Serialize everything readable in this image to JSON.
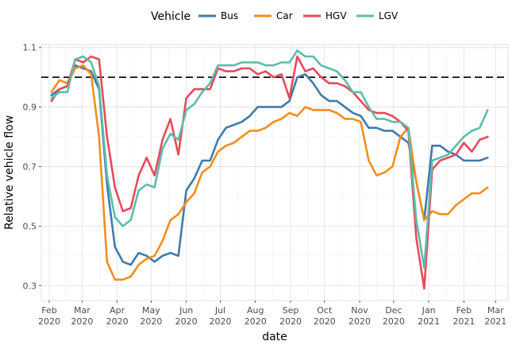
{
  "chart_data": {
    "type": "line",
    "xlabel": "date",
    "ylabel": "Relative vehicle flow",
    "legend": {
      "title": "Vehicle",
      "placement": "top"
    },
    "grid": true,
    "reference_line": {
      "y": 1.0,
      "style": "dashed"
    },
    "ylim": [
      0.25,
      1.11
    ],
    "xlim": [
      "2020-01-25",
      "2021-03-12"
    ],
    "y_ticks": [
      {
        "value": 0.3,
        "label": "0.3"
      },
      {
        "value": 0.5,
        "label": "0.5"
      },
      {
        "value": 0.7,
        "label": "0.7"
      },
      {
        "value": 0.9,
        "label": "0.9"
      },
      {
        "value": 1.1,
        "label": "1.1"
      }
    ],
    "x_ticks": [
      {
        "date": "2020-02-01",
        "month": "Feb",
        "year": "2020"
      },
      {
        "date": "2020-03-01",
        "month": "Mar",
        "year": "2020"
      },
      {
        "date": "2020-04-01",
        "month": "Apr",
        "year": "2020"
      },
      {
        "date": "2020-05-01",
        "month": "May",
        "year": "2020"
      },
      {
        "date": "2020-06-01",
        "month": "Jun",
        "year": "2020"
      },
      {
        "date": "2020-07-01",
        "month": "Jul",
        "year": "2020"
      },
      {
        "date": "2020-08-01",
        "month": "Aug",
        "year": "2020"
      },
      {
        "date": "2020-09-01",
        "month": "Sep",
        "year": "2020"
      },
      {
        "date": "2020-10-01",
        "month": "Oct",
        "year": "2020"
      },
      {
        "date": "2020-11-01",
        "month": "Nov",
        "year": "2020"
      },
      {
        "date": "2020-12-01",
        "month": "Dec",
        "year": "2020"
      },
      {
        "date": "2021-01-01",
        "month": "Jan",
        "year": "2021"
      },
      {
        "date": "2021-02-01",
        "month": "Feb",
        "year": "2021"
      },
      {
        "date": "2021-03-01",
        "month": "Mar",
        "year": "2021"
      }
    ],
    "series": [
      {
        "name": "Bus",
        "color": "#3f7bab",
        "points": [
          [
            "2020-02-03",
            0.94
          ],
          [
            "2020-02-10",
            0.96
          ],
          [
            "2020-02-17",
            0.97
          ],
          [
            "2020-02-24",
            1.04
          ],
          [
            "2020-03-02",
            1.03
          ],
          [
            "2020-03-09",
            1.02
          ],
          [
            "2020-03-16",
            0.96
          ],
          [
            "2020-03-23",
            0.64
          ],
          [
            "2020-03-30",
            0.43
          ],
          [
            "2020-04-06",
            0.38
          ],
          [
            "2020-04-13",
            0.37
          ],
          [
            "2020-04-20",
            0.41
          ],
          [
            "2020-04-27",
            0.4
          ],
          [
            "2020-05-04",
            0.38
          ],
          [
            "2020-05-11",
            0.4
          ],
          [
            "2020-05-18",
            0.41
          ],
          [
            "2020-05-25",
            0.4
          ],
          [
            "2020-06-01",
            0.62
          ],
          [
            "2020-06-08",
            0.66
          ],
          [
            "2020-06-15",
            0.72
          ],
          [
            "2020-06-22",
            0.72
          ],
          [
            "2020-06-29",
            0.79
          ],
          [
            "2020-07-06",
            0.83
          ],
          [
            "2020-07-13",
            0.84
          ],
          [
            "2020-07-20",
            0.85
          ],
          [
            "2020-07-27",
            0.87
          ],
          [
            "2020-08-03",
            0.9
          ],
          [
            "2020-08-10",
            0.9
          ],
          [
            "2020-08-17",
            0.9
          ],
          [
            "2020-08-24",
            0.9
          ],
          [
            "2020-08-31",
            0.92
          ],
          [
            "2020-09-07",
            1.0
          ],
          [
            "2020-09-14",
            1.01
          ],
          [
            "2020-09-21",
            0.98
          ],
          [
            "2020-09-28",
            0.94
          ],
          [
            "2020-10-05",
            0.92
          ],
          [
            "2020-10-12",
            0.92
          ],
          [
            "2020-10-19",
            0.9
          ],
          [
            "2020-10-26",
            0.88
          ],
          [
            "2020-11-02",
            0.87
          ],
          [
            "2020-11-09",
            0.83
          ],
          [
            "2020-11-16",
            0.83
          ],
          [
            "2020-11-23",
            0.82
          ],
          [
            "2020-11-30",
            0.82
          ],
          [
            "2020-12-07",
            0.8
          ],
          [
            "2020-12-14",
            0.78
          ],
          [
            "2020-12-21",
            0.65
          ],
          [
            "2020-12-28",
            0.52
          ],
          [
            "2021-01-04",
            0.77
          ],
          [
            "2021-01-11",
            0.77
          ],
          [
            "2021-01-18",
            0.75
          ],
          [
            "2021-01-25",
            0.74
          ],
          [
            "2021-02-01",
            0.72
          ],
          [
            "2021-02-08",
            0.72
          ],
          [
            "2021-02-15",
            0.72
          ],
          [
            "2021-02-22",
            0.73
          ]
        ]
      },
      {
        "name": "Car",
        "color": "#f28e1c",
        "points": [
          [
            "2020-02-03",
            0.95
          ],
          [
            "2020-02-10",
            0.99
          ],
          [
            "2020-02-17",
            0.98
          ],
          [
            "2020-02-24",
            1.03
          ],
          [
            "2020-03-02",
            1.04
          ],
          [
            "2020-03-09",
            1.01
          ],
          [
            "2020-03-16",
            0.8
          ],
          [
            "2020-03-23",
            0.38
          ],
          [
            "2020-03-30",
            0.32
          ],
          [
            "2020-04-06",
            0.32
          ],
          [
            "2020-04-13",
            0.33
          ],
          [
            "2020-04-20",
            0.37
          ],
          [
            "2020-04-27",
            0.39
          ],
          [
            "2020-05-04",
            0.4
          ],
          [
            "2020-05-11",
            0.45
          ],
          [
            "2020-05-18",
            0.52
          ],
          [
            "2020-05-25",
            0.54
          ],
          [
            "2020-06-01",
            0.58
          ],
          [
            "2020-06-08",
            0.61
          ],
          [
            "2020-06-15",
            0.68
          ],
          [
            "2020-06-22",
            0.7
          ],
          [
            "2020-06-29",
            0.75
          ],
          [
            "2020-07-06",
            0.77
          ],
          [
            "2020-07-13",
            0.78
          ],
          [
            "2020-07-20",
            0.8
          ],
          [
            "2020-07-27",
            0.82
          ],
          [
            "2020-08-03",
            0.82
          ],
          [
            "2020-08-10",
            0.83
          ],
          [
            "2020-08-17",
            0.85
          ],
          [
            "2020-08-24",
            0.86
          ],
          [
            "2020-08-31",
            0.88
          ],
          [
            "2020-09-07",
            0.87
          ],
          [
            "2020-09-14",
            0.9
          ],
          [
            "2020-09-21",
            0.89
          ],
          [
            "2020-09-28",
            0.89
          ],
          [
            "2020-10-05",
            0.89
          ],
          [
            "2020-10-12",
            0.88
          ],
          [
            "2020-10-19",
            0.86
          ],
          [
            "2020-10-26",
            0.86
          ],
          [
            "2020-11-02",
            0.85
          ],
          [
            "2020-11-09",
            0.72
          ],
          [
            "2020-11-16",
            0.67
          ],
          [
            "2020-11-23",
            0.68
          ],
          [
            "2020-11-30",
            0.7
          ],
          [
            "2020-12-07",
            0.8
          ],
          [
            "2020-12-14",
            0.83
          ],
          [
            "2020-12-21",
            0.65
          ],
          [
            "2020-12-28",
            0.52
          ],
          [
            "2021-01-04",
            0.55
          ],
          [
            "2021-01-11",
            0.54
          ],
          [
            "2021-01-18",
            0.54
          ],
          [
            "2021-01-25",
            0.57
          ],
          [
            "2021-02-01",
            0.59
          ],
          [
            "2021-02-08",
            0.61
          ],
          [
            "2021-02-15",
            0.61
          ],
          [
            "2021-02-22",
            0.63
          ]
        ]
      },
      {
        "name": "HGV",
        "color": "#e84a5a",
        "points": [
          [
            "2020-02-03",
            0.92
          ],
          [
            "2020-02-10",
            0.96
          ],
          [
            "2020-02-17",
            0.97
          ],
          [
            "2020-02-24",
            1.06
          ],
          [
            "2020-03-02",
            1.05
          ],
          [
            "2020-03-09",
            1.07
          ],
          [
            "2020-03-16",
            1.06
          ],
          [
            "2020-03-23",
            0.8
          ],
          [
            "2020-03-30",
            0.63
          ],
          [
            "2020-04-06",
            0.55
          ],
          [
            "2020-04-13",
            0.56
          ],
          [
            "2020-04-20",
            0.67
          ],
          [
            "2020-04-27",
            0.73
          ],
          [
            "2020-05-04",
            0.67
          ],
          [
            "2020-05-11",
            0.79
          ],
          [
            "2020-05-18",
            0.86
          ],
          [
            "2020-05-25",
            0.74
          ],
          [
            "2020-06-01",
            0.93
          ],
          [
            "2020-06-08",
            0.96
          ],
          [
            "2020-06-15",
            0.96
          ],
          [
            "2020-06-22",
            0.96
          ],
          [
            "2020-06-29",
            1.03
          ],
          [
            "2020-07-06",
            1.02
          ],
          [
            "2020-07-13",
            1.02
          ],
          [
            "2020-07-20",
            1.03
          ],
          [
            "2020-07-27",
            1.03
          ],
          [
            "2020-08-03",
            1.01
          ],
          [
            "2020-08-10",
            1.02
          ],
          [
            "2020-08-17",
            1.0
          ],
          [
            "2020-08-24",
            1.01
          ],
          [
            "2020-08-31",
            0.93
          ],
          [
            "2020-09-07",
            1.07
          ],
          [
            "2020-09-14",
            1.02
          ],
          [
            "2020-09-21",
            1.03
          ],
          [
            "2020-09-28",
            1.0
          ],
          [
            "2020-10-05",
            0.98
          ],
          [
            "2020-10-12",
            0.98
          ],
          [
            "2020-10-19",
            0.97
          ],
          [
            "2020-10-26",
            0.95
          ],
          [
            "2020-11-02",
            0.92
          ],
          [
            "2020-11-09",
            0.89
          ],
          [
            "2020-11-16",
            0.88
          ],
          [
            "2020-11-23",
            0.88
          ],
          [
            "2020-11-30",
            0.87
          ],
          [
            "2020-12-07",
            0.85
          ],
          [
            "2020-12-14",
            0.82
          ],
          [
            "2020-12-21",
            0.46
          ],
          [
            "2020-12-28",
            0.29
          ],
          [
            "2021-01-04",
            0.69
          ],
          [
            "2021-01-11",
            0.72
          ],
          [
            "2021-01-18",
            0.73
          ],
          [
            "2021-01-25",
            0.74
          ],
          [
            "2021-02-01",
            0.78
          ],
          [
            "2021-02-08",
            0.75
          ],
          [
            "2021-02-15",
            0.79
          ],
          [
            "2021-02-22",
            0.8
          ]
        ]
      },
      {
        "name": "LGV",
        "color": "#5cbcac",
        "points": [
          [
            "2020-02-03",
            0.93
          ],
          [
            "2020-02-10",
            0.95
          ],
          [
            "2020-02-17",
            0.95
          ],
          [
            "2020-02-24",
            1.06
          ],
          [
            "2020-03-02",
            1.07
          ],
          [
            "2020-03-09",
            1.05
          ],
          [
            "2020-03-16",
            0.97
          ],
          [
            "2020-03-23",
            0.67
          ],
          [
            "2020-03-30",
            0.53
          ],
          [
            "2020-04-06",
            0.5
          ],
          [
            "2020-04-13",
            0.52
          ],
          [
            "2020-04-20",
            0.62
          ],
          [
            "2020-04-27",
            0.64
          ],
          [
            "2020-05-04",
            0.63
          ],
          [
            "2020-05-11",
            0.76
          ],
          [
            "2020-05-18",
            0.81
          ],
          [
            "2020-05-25",
            0.79
          ],
          [
            "2020-06-01",
            0.89
          ],
          [
            "2020-06-08",
            0.91
          ],
          [
            "2020-06-15",
            0.95
          ],
          [
            "2020-06-22",
            0.98
          ],
          [
            "2020-06-29",
            1.04
          ],
          [
            "2020-07-06",
            1.04
          ],
          [
            "2020-07-13",
            1.04
          ],
          [
            "2020-07-20",
            1.05
          ],
          [
            "2020-07-27",
            1.05
          ],
          [
            "2020-08-03",
            1.05
          ],
          [
            "2020-08-10",
            1.04
          ],
          [
            "2020-08-17",
            1.04
          ],
          [
            "2020-08-24",
            1.05
          ],
          [
            "2020-08-31",
            1.05
          ],
          [
            "2020-09-07",
            1.09
          ],
          [
            "2020-09-14",
            1.07
          ],
          [
            "2020-09-21",
            1.07
          ],
          [
            "2020-09-28",
            1.04
          ],
          [
            "2020-10-05",
            1.03
          ],
          [
            "2020-10-12",
            1.02
          ],
          [
            "2020-10-19",
            0.99
          ],
          [
            "2020-10-26",
            0.95
          ],
          [
            "2020-11-02",
            0.95
          ],
          [
            "2020-11-09",
            0.9
          ],
          [
            "2020-11-16",
            0.86
          ],
          [
            "2020-11-23",
            0.86
          ],
          [
            "2020-11-30",
            0.85
          ],
          [
            "2020-12-07",
            0.85
          ],
          [
            "2020-12-14",
            0.83
          ],
          [
            "2020-12-21",
            0.52
          ],
          [
            "2020-12-28",
            0.36
          ],
          [
            "2021-01-04",
            0.72
          ],
          [
            "2021-01-11",
            0.73
          ],
          [
            "2021-01-18",
            0.74
          ],
          [
            "2021-01-25",
            0.77
          ],
          [
            "2021-02-01",
            0.8
          ],
          [
            "2021-02-08",
            0.82
          ],
          [
            "2021-02-15",
            0.83
          ],
          [
            "2021-02-22",
            0.89
          ]
        ]
      }
    ]
  }
}
